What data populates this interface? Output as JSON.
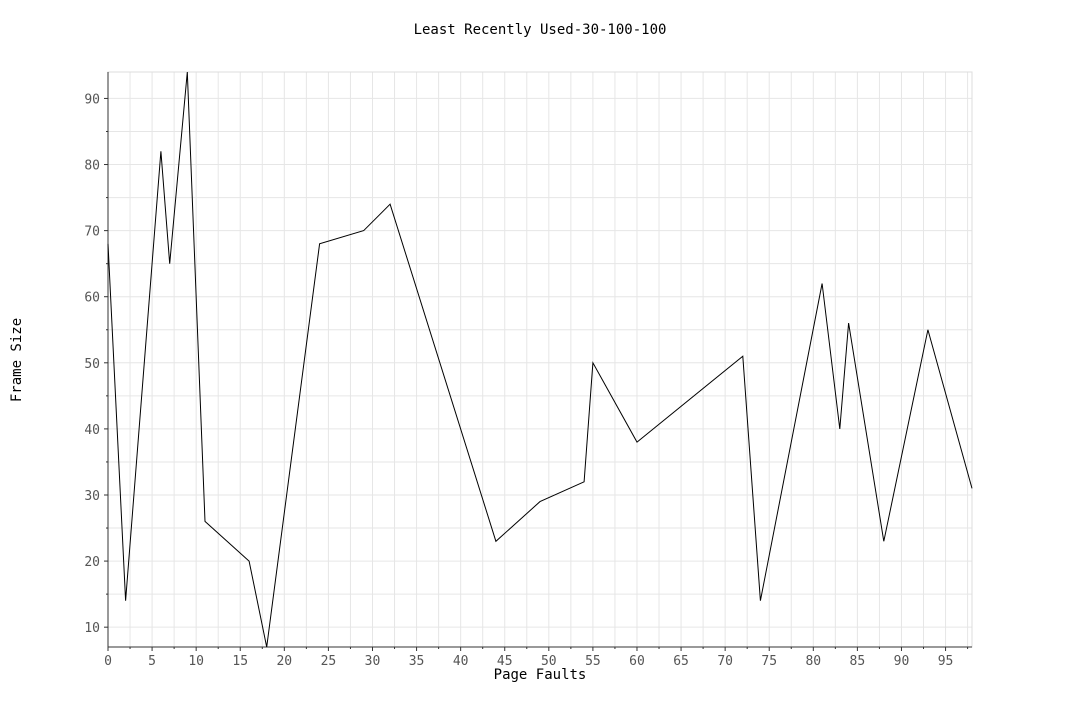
{
  "chart_data": {
    "type": "line",
    "title": "Least Recently Used-30-100-100",
    "xlabel": "Page Faults",
    "ylabel": "Frame Size",
    "xlim": [
      0,
      98
    ],
    "ylim": [
      7,
      94
    ],
    "xticks": [
      0,
      5,
      10,
      15,
      20,
      25,
      30,
      35,
      40,
      45,
      50,
      55,
      60,
      65,
      70,
      75,
      80,
      85,
      90,
      95
    ],
    "yticks": [
      10,
      20,
      30,
      40,
      50,
      60,
      70,
      80,
      90
    ],
    "grid": true,
    "series": [
      {
        "x": [
          0,
          2,
          6,
          7,
          9,
          11,
          16,
          18,
          24,
          29,
          32,
          44,
          49,
          54,
          55,
          60,
          72,
          74,
          81,
          83,
          84,
          88,
          93,
          98
        ],
        "y": [
          68,
          14,
          82,
          65,
          94,
          26,
          20,
          7,
          68,
          70,
          74,
          23,
          29,
          32,
          50,
          38,
          51,
          14,
          62,
          40,
          56,
          23,
          55,
          31
        ]
      }
    ]
  }
}
